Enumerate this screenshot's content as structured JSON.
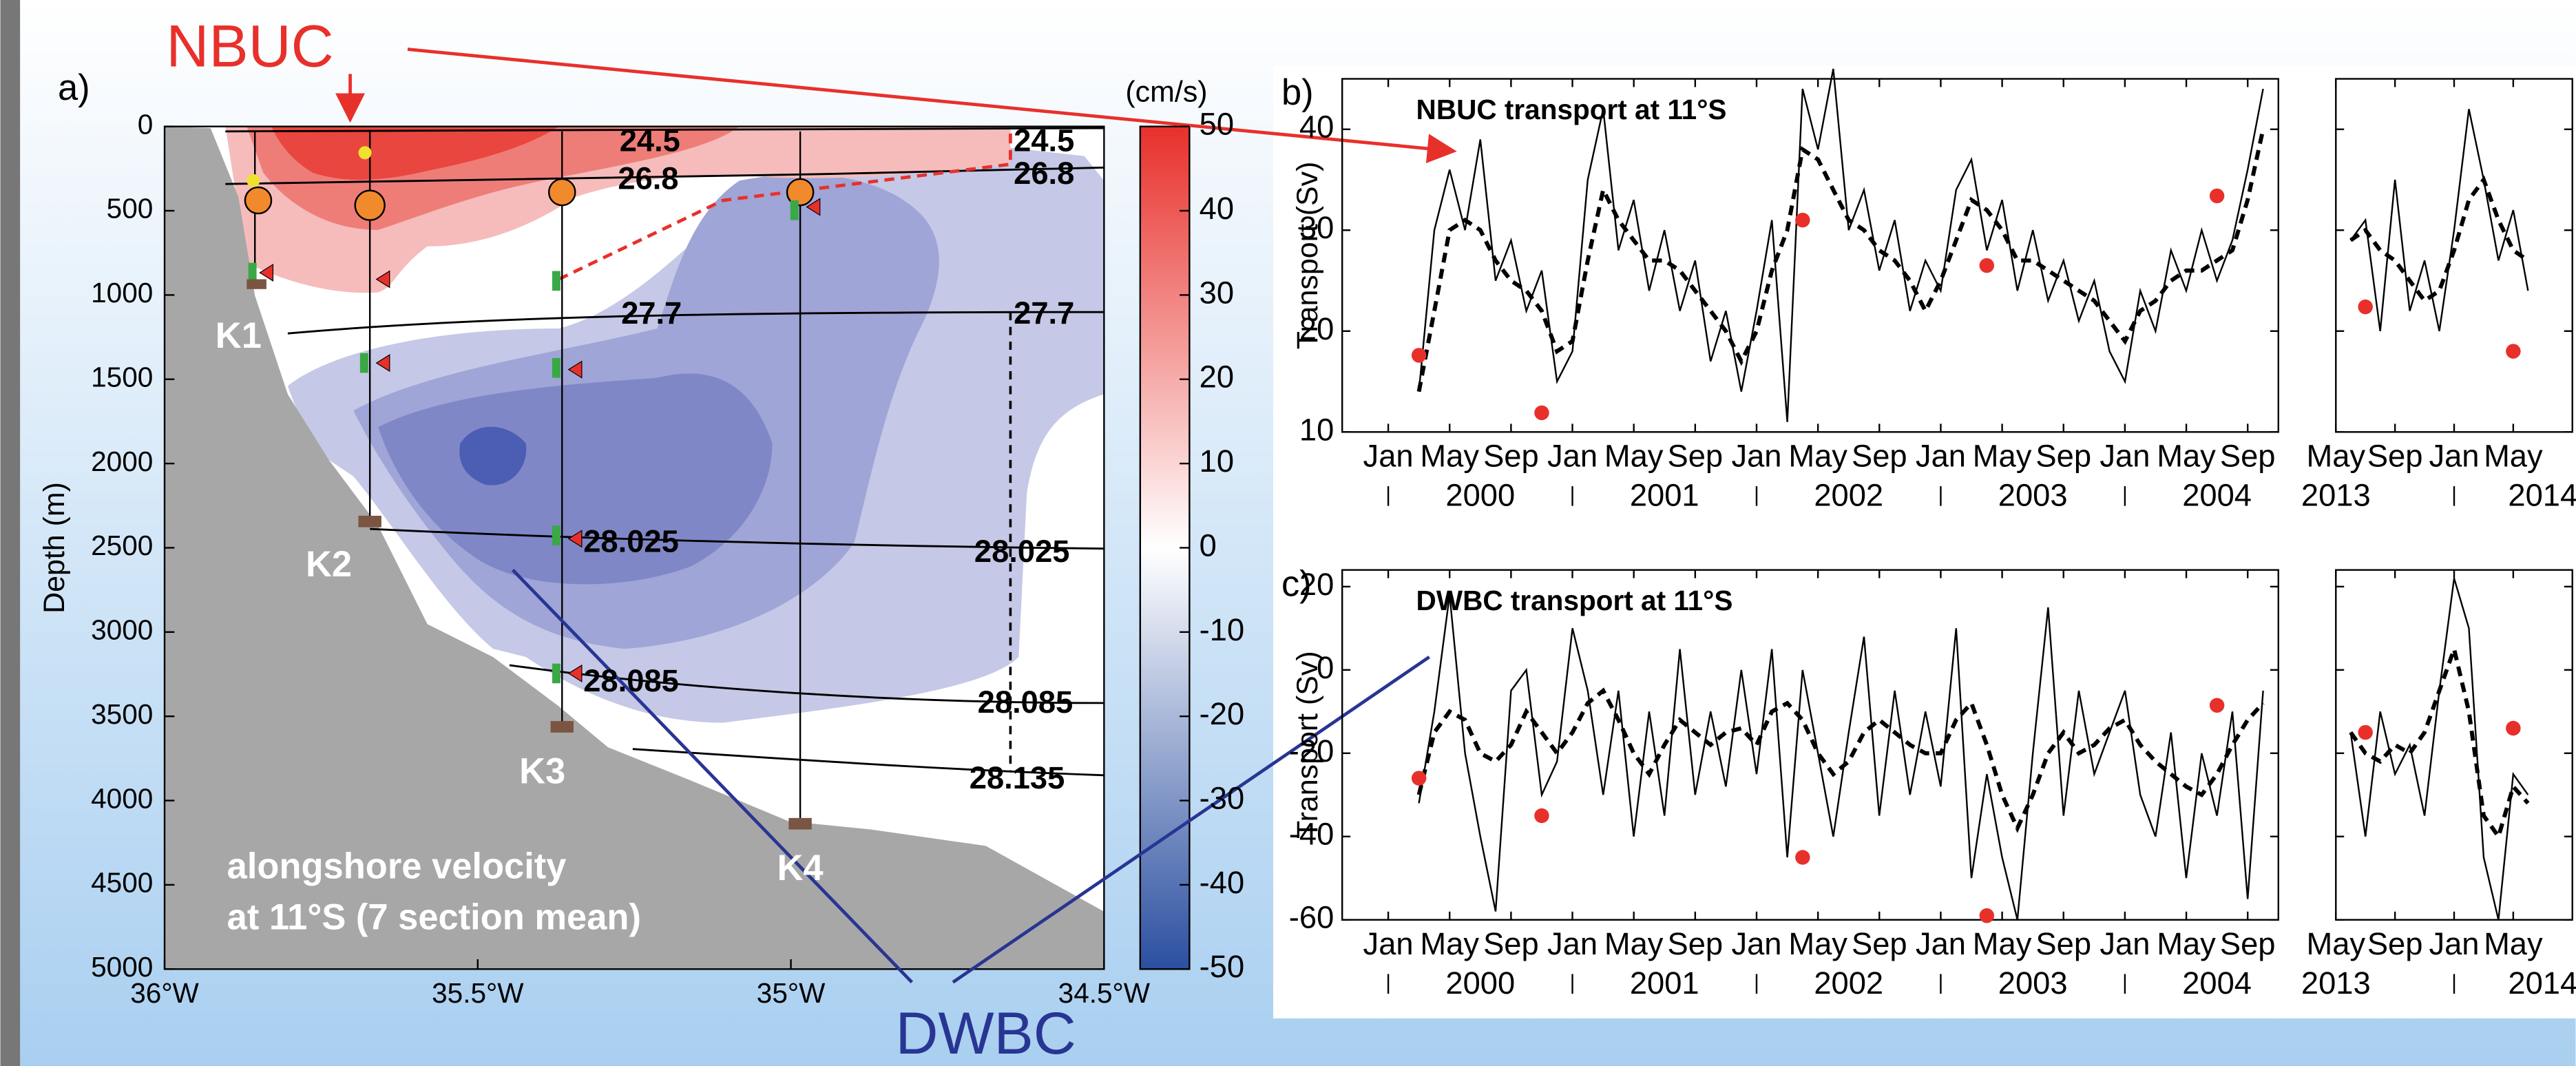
{
  "chart_data": [
    {
      "type": "contour",
      "panel_label": "a)",
      "ylabel": "Depth (m)",
      "colorbar_label": "(cm/s)",
      "xlim": [
        -36,
        -34.5
      ],
      "xticks": [
        {
          "value": -36,
          "label": "36°W"
        },
        {
          "value": -35.5,
          "label": "35.5°W"
        },
        {
          "value": -35,
          "label": "35°W"
        },
        {
          "value": -34.5,
          "label": "34.5°W"
        }
      ],
      "ylim": [
        0,
        5000
      ],
      "invert_y": true,
      "yticks": [
        0,
        500,
        1000,
        1500,
        2000,
        2500,
        3000,
        3500,
        4000,
        4500,
        5000
      ],
      "zlim": [
        -50,
        50
      ],
      "zticks": [
        50,
        40,
        30,
        20,
        10,
        0,
        -10,
        -20,
        -30,
        -40,
        -50
      ],
      "colormap": [
        "#2b4fa0",
        "#ffffff",
        "#e8302b"
      ],
      "isopycnals": [
        24.5,
        26.8,
        27.7,
        28.025,
        28.085,
        28.135
      ],
      "moorings": [
        "K1",
        "K2",
        "K3",
        "K4"
      ],
      "annotations": [
        "alongshore velocity",
        "at 11°S (7 section mean)"
      ],
      "currents": [
        "NBUC",
        "DWBC"
      ]
    },
    {
      "type": "line",
      "panel_label": "b)",
      "title": "NBUC transport at 11°S",
      "ylabel": "Transport (Sv)",
      "xlim": [
        "1999-10",
        "2004-11"
      ],
      "ylim": [
        10,
        45
      ],
      "yticks": [
        10,
        20,
        30,
        40
      ],
      "xticks": [
        {
          "value": "2000-01",
          "label": "Jan"
        },
        {
          "value": "2000-05",
          "label": "May"
        },
        {
          "value": "2000-09",
          "label": "Sep"
        },
        {
          "value": "2001-01",
          "label": "Jan"
        },
        {
          "value": "2001-05",
          "label": "May"
        },
        {
          "value": "2001-09",
          "label": "Sep"
        },
        {
          "value": "2002-01",
          "label": "Jan"
        },
        {
          "value": "2002-05",
          "label": "May"
        },
        {
          "value": "2002-09",
          "label": "Sep"
        },
        {
          "value": "2003-01",
          "label": "Jan"
        },
        {
          "value": "2003-05",
          "label": "May"
        },
        {
          "value": "2003-09",
          "label": "Sep"
        },
        {
          "value": "2004-01",
          "label": "Jan"
        },
        {
          "value": "2004-05",
          "label": "May"
        },
        {
          "value": "2004-09",
          "label": "Sep"
        }
      ],
      "xticks2": [
        {
          "value": "2000-07",
          "label": "2000"
        },
        {
          "value": "2001-07",
          "label": "2001"
        },
        {
          "value": "2002-07",
          "label": "2002"
        },
        {
          "value": "2003-07",
          "label": "2003"
        },
        {
          "value": "2004-07",
          "label": "2004"
        }
      ],
      "series": [
        {
          "color": "#000000",
          "style": "solid",
          "x": [
            "2000-03",
            "2000-04",
            "2000-05",
            "2000-06",
            "2000-07",
            "2000-08",
            "2000-09",
            "2000-10",
            "2000-11",
            "2000-12",
            "2001-01",
            "2001-02",
            "2001-03",
            "2001-04",
            "2001-05",
            "2001-06",
            "2001-07",
            "2001-08",
            "2001-09",
            "2001-10",
            "2001-11",
            "2001-12",
            "2002-01",
            "2002-02",
            "2002-03",
            "2002-04",
            "2002-05",
            "2002-06",
            "2002-07",
            "2002-08",
            "2002-09",
            "2002-10",
            "2002-11",
            "2002-12",
            "2003-01",
            "2003-02",
            "2003-03",
            "2003-04",
            "2003-05",
            "2003-06",
            "2003-07",
            "2003-08",
            "2003-09",
            "2003-10",
            "2003-11",
            "2003-12",
            "2004-01",
            "2004-02",
            "2004-03",
            "2004-04",
            "2004-05",
            "2004-06",
            "2004-07",
            "2004-08",
            "2004-09",
            "2004-10"
          ],
          "values": [
            14,
            30,
            36,
            30,
            39,
            25,
            29,
            22,
            26,
            15,
            18,
            35,
            42,
            28,
            33,
            24,
            30,
            22,
            27,
            17,
            22,
            14,
            22,
            31,
            11,
            44,
            38,
            46,
            30,
            34,
            26,
            31,
            22,
            27,
            24,
            34,
            37,
            28,
            33,
            24,
            30,
            23,
            27,
            21,
            25,
            18,
            15,
            24,
            20,
            28,
            24,
            30,
            25,
            29,
            36,
            44
          ]
        },
        {
          "color": "#000000",
          "style": "dashed",
          "x": [
            "2000-03",
            "2000-04",
            "2000-05",
            "2000-06",
            "2000-07",
            "2000-08",
            "2000-09",
            "2000-10",
            "2000-11",
            "2000-12",
            "2001-01",
            "2001-02",
            "2001-03",
            "2001-04",
            "2001-05",
            "2001-06",
            "2001-07",
            "2001-08",
            "2001-09",
            "2001-10",
            "2001-11",
            "2001-12",
            "2002-01",
            "2002-02",
            "2002-03",
            "2002-04",
            "2002-05",
            "2002-06",
            "2002-07",
            "2002-08",
            "2002-09",
            "2002-10",
            "2002-11",
            "2002-12",
            "2003-01",
            "2003-02",
            "2003-03",
            "2003-04",
            "2003-05",
            "2003-06",
            "2003-07",
            "2003-08",
            "2003-09",
            "2003-10",
            "2003-11",
            "2003-12",
            "2004-01",
            "2004-02",
            "2004-03",
            "2004-04",
            "2004-05",
            "2004-06",
            "2004-07",
            "2004-08",
            "2004-09",
            "2004-10"
          ],
          "values": [
            14,
            22,
            30,
            31,
            30,
            27,
            25,
            24,
            22,
            18,
            19,
            27,
            34,
            31,
            29,
            27,
            27,
            26,
            24,
            22,
            20,
            17,
            20,
            26,
            30,
            38,
            37,
            34,
            31,
            30,
            28,
            27,
            25,
            22,
            25,
            29,
            33,
            32,
            30,
            27,
            27,
            26,
            25,
            24,
            23,
            21,
            19,
            22,
            23,
            25,
            26,
            26,
            27,
            28,
            33,
            40
          ]
        },
        {
          "color": "#e8302b",
          "style": "dots",
          "x": [
            "2000-03",
            "2000-11",
            "2002-04",
            "2003-04",
            "2004-07"
          ],
          "values": [
            17.6,
            11.9,
            31,
            26.5,
            33.4
          ]
        }
      ]
    },
    {
      "type": "line",
      "xlim": [
        "2013-05",
        "2014-09"
      ],
      "ylim": [
        10,
        45
      ],
      "yticks": [
        10,
        20,
        30,
        40
      ],
      "ytick_labels": false,
      "xticks": [
        {
          "value": "2013-05",
          "label": "May"
        },
        {
          "value": "2013-09",
          "label": "Sep"
        },
        {
          "value": "2014-01",
          "label": "Jan"
        },
        {
          "value": "2014-05",
          "label": "May"
        }
      ],
      "xticks2": [
        {
          "value": "2013-05",
          "label": "2013"
        },
        {
          "value": "2014-07",
          "label": "2014"
        }
      ],
      "series": [
        {
          "color": "#000000",
          "style": "solid",
          "x": [
            "2013-06",
            "2013-07",
            "2013-08",
            "2013-09",
            "2013-10",
            "2013-11",
            "2013-12",
            "2014-01",
            "2014-02",
            "2014-03",
            "2014-04",
            "2014-05",
            "2014-06"
          ],
          "values": [
            29,
            31,
            20,
            35,
            22,
            27,
            20,
            30,
            42,
            35,
            27,
            32,
            24
          ]
        },
        {
          "color": "#000000",
          "style": "dashed",
          "x": [
            "2013-06",
            "2013-07",
            "2013-08",
            "2013-09",
            "2013-10",
            "2013-11",
            "2013-12",
            "2014-01",
            "2014-02",
            "2014-03",
            "2014-04",
            "2014-05",
            "2014-06"
          ],
          "values": [
            29,
            30,
            28,
            27,
            25,
            23,
            24,
            28,
            33,
            35,
            31,
            28,
            27
          ]
        },
        {
          "color": "#e8302b",
          "style": "dots",
          "x": [
            "2013-07",
            "2014-05"
          ],
          "values": [
            22.4,
            18
          ]
        }
      ]
    },
    {
      "type": "line",
      "panel_label": "c)",
      "title": "DWBC transport at 11°S",
      "ylabel": "Transport (Sv)",
      "xlim": [
        "1999-10",
        "2004-11"
      ],
      "ylim": [
        -60,
        24
      ],
      "yticks": [
        -60,
        -40,
        -20,
        0,
        20
      ],
      "xticks": [
        {
          "value": "2000-01",
          "label": "Jan"
        },
        {
          "value": "2000-05",
          "label": "May"
        },
        {
          "value": "2000-09",
          "label": "Sep"
        },
        {
          "value": "2001-01",
          "label": "Jan"
        },
        {
          "value": "2001-05",
          "label": "May"
        },
        {
          "value": "2001-09",
          "label": "Sep"
        },
        {
          "value": "2002-01",
          "label": "Jan"
        },
        {
          "value": "2002-05",
          "label": "May"
        },
        {
          "value": "2002-09",
          "label": "Sep"
        },
        {
          "value": "2003-01",
          "label": "Jan"
        },
        {
          "value": "2003-05",
          "label": "May"
        },
        {
          "value": "2003-09",
          "label": "Sep"
        },
        {
          "value": "2004-01",
          "label": "Jan"
        },
        {
          "value": "2004-05",
          "label": "May"
        },
        {
          "value": "2004-09",
          "label": "Sep"
        }
      ],
      "xticks2": [
        {
          "value": "2000-07",
          "label": "2000"
        },
        {
          "value": "2001-07",
          "label": "2001"
        },
        {
          "value": "2002-07",
          "label": "2002"
        },
        {
          "value": "2003-07",
          "label": "2003"
        },
        {
          "value": "2004-07",
          "label": "2004"
        }
      ],
      "series": [
        {
          "color": "#000000",
          "style": "solid",
          "x": [
            "2000-03",
            "2000-04",
            "2000-05",
            "2000-06",
            "2000-07",
            "2000-08",
            "2000-09",
            "2000-10",
            "2000-11",
            "2000-12",
            "2001-01",
            "2001-02",
            "2001-03",
            "2001-04",
            "2001-05",
            "2001-06",
            "2001-07",
            "2001-08",
            "2001-09",
            "2001-10",
            "2001-11",
            "2001-12",
            "2002-01",
            "2002-02",
            "2002-03",
            "2002-04",
            "2002-05",
            "2002-06",
            "2002-07",
            "2002-08",
            "2002-09",
            "2002-10",
            "2002-11",
            "2002-12",
            "2003-01",
            "2003-02",
            "2003-03",
            "2003-04",
            "2003-05",
            "2003-06",
            "2003-07",
            "2003-08",
            "2003-09",
            "2003-10",
            "2003-11",
            "2003-12",
            "2004-01",
            "2004-02",
            "2004-03",
            "2004-04",
            "2004-05",
            "2004-06",
            "2004-07",
            "2004-08",
            "2004-09",
            "2004-10"
          ],
          "values": [
            -32,
            -10,
            18,
            -20,
            -40,
            -58,
            -5,
            0,
            -30,
            -22,
            10,
            -5,
            -30,
            -5,
            -40,
            -10,
            -35,
            5,
            -30,
            -10,
            -28,
            0,
            -25,
            5,
            -45,
            0,
            -20,
            -40,
            -15,
            8,
            -35,
            -5,
            -30,
            -10,
            -28,
            10,
            -50,
            -25,
            -45,
            -60,
            -20,
            15,
            -35,
            -5,
            -25,
            -15,
            -5,
            -30,
            -40,
            -15,
            -50,
            -20,
            -35,
            -10,
            -55,
            -5
          ]
        },
        {
          "color": "#000000",
          "style": "dashed",
          "x": [
            "2000-03",
            "2000-04",
            "2000-05",
            "2000-06",
            "2000-07",
            "2000-08",
            "2000-09",
            "2000-10",
            "2000-11",
            "2000-12",
            "2001-01",
            "2001-02",
            "2001-03",
            "2001-04",
            "2001-05",
            "2001-06",
            "2001-07",
            "2001-08",
            "2001-09",
            "2001-10",
            "2001-11",
            "2001-12",
            "2002-01",
            "2002-02",
            "2002-03",
            "2002-04",
            "2002-05",
            "2002-06",
            "2002-07",
            "2002-08",
            "2002-09",
            "2002-10",
            "2002-11",
            "2002-12",
            "2003-01",
            "2003-02",
            "2003-03",
            "2003-04",
            "2003-05",
            "2003-06",
            "2003-07",
            "2003-08",
            "2003-09",
            "2003-10",
            "2003-11",
            "2003-12",
            "2004-01",
            "2004-02",
            "2004-03",
            "2004-04",
            "2004-05",
            "2004-06",
            "2004-07",
            "2004-08",
            "2004-09",
            "2004-10"
          ],
          "values": [
            -30,
            -15,
            -10,
            -12,
            -20,
            -22,
            -18,
            -10,
            -15,
            -20,
            -15,
            -8,
            -5,
            -12,
            -20,
            -25,
            -18,
            -12,
            -15,
            -18,
            -15,
            -14,
            -18,
            -10,
            -8,
            -12,
            -20,
            -25,
            -22,
            -15,
            -12,
            -15,
            -18,
            -20,
            -20,
            -12,
            -8,
            -18,
            -30,
            -38,
            -30,
            -20,
            -15,
            -20,
            -18,
            -14,
            -12,
            -18,
            -22,
            -25,
            -28,
            -30,
            -25,
            -18,
            -12,
            -8
          ]
        },
        {
          "color": "#e8302b",
          "style": "dots",
          "x": [
            "2000-03",
            "2000-11",
            "2002-04",
            "2003-04",
            "2004-07"
          ],
          "values": [
            -26,
            -35,
            -45,
            -59,
            -8.5
          ]
        }
      ]
    },
    {
      "type": "line",
      "xlim": [
        "2013-05",
        "2014-09"
      ],
      "ylim": [
        -60,
        24
      ],
      "yticks": [
        -60,
        -40,
        -20,
        0,
        20
      ],
      "ytick_labels": false,
      "xticks": [
        {
          "value": "2013-05",
          "label": "May"
        },
        {
          "value": "2013-09",
          "label": "Sep"
        },
        {
          "value": "2014-01",
          "label": "Jan"
        },
        {
          "value": "2014-05",
          "label": "May"
        }
      ],
      "xticks2": [
        {
          "value": "2013-05",
          "label": "2013"
        },
        {
          "value": "2014-07",
          "label": "2014"
        }
      ],
      "series": [
        {
          "color": "#000000",
          "style": "solid",
          "x": [
            "2013-06",
            "2013-07",
            "2013-08",
            "2013-09",
            "2013-10",
            "2013-11",
            "2013-12",
            "2014-01",
            "2014-02",
            "2014-03",
            "2014-04",
            "2014-05",
            "2014-06"
          ],
          "values": [
            -15,
            -40,
            -10,
            -25,
            -18,
            -35,
            -5,
            22,
            10,
            -45,
            -60,
            -25,
            -30
          ]
        },
        {
          "color": "#000000",
          "style": "dashed",
          "x": [
            "2013-06",
            "2013-07",
            "2013-08",
            "2013-09",
            "2013-10",
            "2013-11",
            "2013-12",
            "2014-01",
            "2014-02",
            "2014-03",
            "2014-04",
            "2014-05",
            "2014-06"
          ],
          "values": [
            -15,
            -20,
            -22,
            -18,
            -20,
            -15,
            -5,
            5,
            -10,
            -35,
            -40,
            -28,
            -32
          ]
        },
        {
          "color": "#e8302b",
          "style": "dots",
          "x": [
            "2013-07",
            "2014-05"
          ],
          "values": [
            -15,
            -14
          ]
        }
      ]
    }
  ]
}
